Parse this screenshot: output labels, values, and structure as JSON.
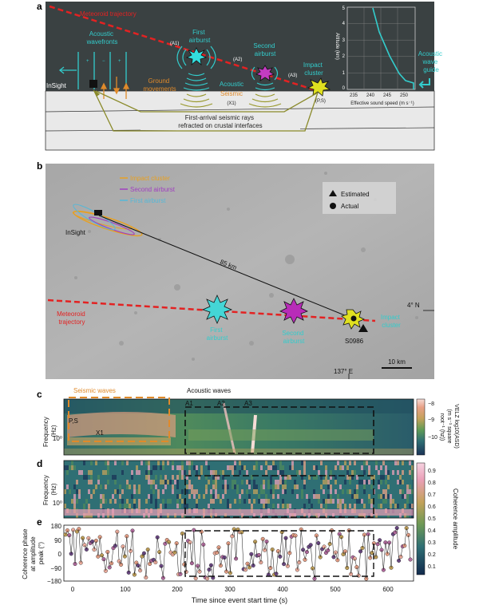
{
  "panel_a": {
    "letter": "a",
    "meteoroid_trajectory": "Meteoroid trajectory",
    "acoustic_wavefronts": [
      "Acoustic",
      "wavefronts"
    ],
    "first_airburst": [
      "First",
      "airburst"
    ],
    "second_airburst": [
      "Second",
      "airburst"
    ],
    "impact_cluster": [
      "Impact",
      "cluster"
    ],
    "a1": "(A1)",
    "a2": "(A2)",
    "a3": "(A3)",
    "insight": "InSight",
    "ground_movements": [
      "Ground",
      "movements"
    ],
    "acoustic_seismic": [
      "Acoustic",
      "Seismic"
    ],
    "x1": "(X1)",
    "ps": "(P,S)",
    "rays": [
      "First-arrival seismic rays",
      "refracted on crustal interfaces"
    ],
    "waveguide": [
      "Acoustic",
      "wave",
      "guide"
    ],
    "inset": {
      "ylabel": "Altitude (km)",
      "xlabel": "Effective sound speed (m s⁻¹)",
      "yticks": [
        "0",
        "1",
        "2",
        "3",
        "4",
        "5"
      ],
      "xticks": [
        "235",
        "240",
        "245",
        "250"
      ]
    },
    "colors": {
      "sky": "#3a4142",
      "trajectory": "#e32222",
      "cyan": "#33cccc",
      "orange": "#e08a2a",
      "olive": "#8a8a2a"
    }
  },
  "panel_b": {
    "letter": "b",
    "legend_lines": [
      {
        "label": "Impact cluster",
        "color": "#e8a020"
      },
      {
        "label": "Second airburst",
        "color": "#a040c0"
      },
      {
        "label": "First airburst",
        "color": "#55b8d8"
      }
    ],
    "legend_markers": [
      "Estimated",
      "Actual"
    ],
    "insight": "InSight",
    "distance": "85 km",
    "meteoroid_trajectory": [
      "Meteoroid",
      "trajectory"
    ],
    "first_airburst": [
      "First",
      "airburst"
    ],
    "second_airburst": [
      "Second",
      "airburst"
    ],
    "impact_cluster": [
      "Impact",
      "cluster"
    ],
    "lat": "4° N",
    "lon": "137° E",
    "event": "S0986",
    "scale": "10 km"
  },
  "panel_c": {
    "letter": "c",
    "ylabel": [
      "Frequency",
      "(Hz)"
    ],
    "ytick": "10⁰",
    "seismic_waves": "Seismic waves",
    "acoustic_waves": "Acoustic waves",
    "a1": "A1",
    "a2": "A2",
    "a3": "A3",
    "ps": "P,S",
    "x1": "X1",
    "cbar_label": [
      "VELZ log10(ASD)",
      "(m s⁻¹ square",
      "root⁻¹ (hz))"
    ],
    "cbar_ticks": [
      "−8",
      "−9",
      "−10"
    ]
  },
  "panel_d": {
    "letter": "d",
    "ylabel": [
      "Frequency",
      "(Hz)"
    ],
    "ytick": "10⁰",
    "cbar_label": "Coherence amplitude",
    "cbar_ticks": [
      "0.9",
      "0.8",
      "0.7",
      "0.6",
      "0.5",
      "0.4",
      "0.3",
      "0.2",
      "0.1"
    ]
  },
  "panel_e": {
    "letter": "e",
    "ylabel": [
      "Coherence phase",
      "at amplitude",
      "peak (°)"
    ],
    "yticks": [
      "180",
      "90",
      "0",
      "−90",
      "−180"
    ],
    "xticks": [
      "0",
      "100",
      "200",
      "300",
      "400",
      "500",
      "600"
    ],
    "xlabel": "Time since event start time (s)"
  }
}
